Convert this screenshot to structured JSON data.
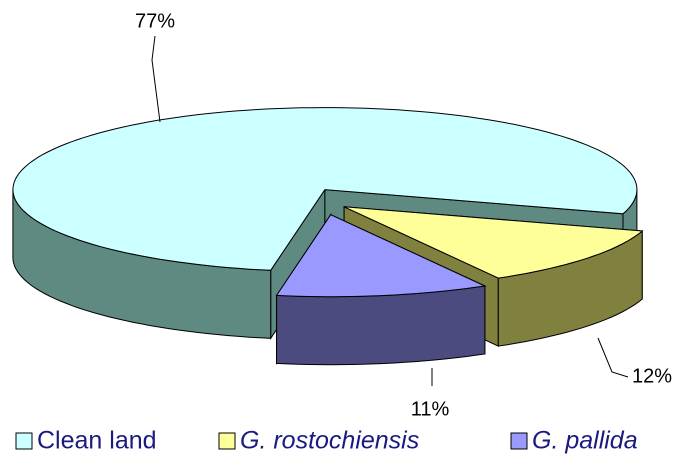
{
  "chart_data": {
    "type": "pie3d",
    "categories": [
      "Clean land",
      "G. rostochiensis",
      "G. pallida"
    ],
    "values": [
      77,
      12,
      11
    ],
    "value_labels": [
      "77%",
      "12%",
      "11%"
    ],
    "colors": [
      "#ccffff",
      "#ffff99",
      "#9999ff"
    ],
    "side_colors": [
      "#5f8a82",
      "#80803f",
      "#4b4b80"
    ]
  }
}
